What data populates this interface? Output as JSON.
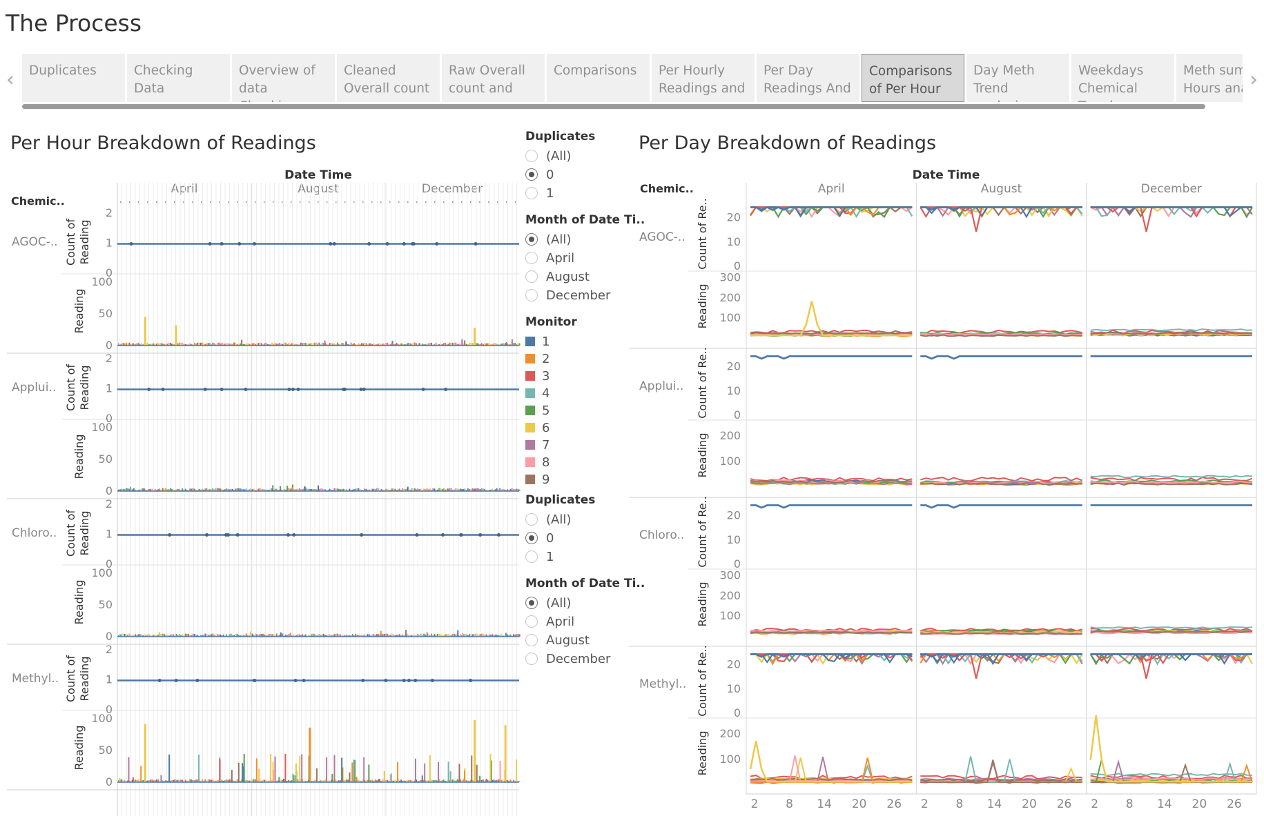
{
  "page_title": "The Process",
  "tabs": [
    {
      "label": "Duplicates",
      "active": false
    },
    {
      "label": "Checking Data",
      "active": false
    },
    {
      "label": "Overview of\ndata Checking",
      "active": false
    },
    {
      "label": "Cleaned\nOverall count",
      "active": false
    },
    {
      "label": "Raw Overall\ncount and",
      "active": false
    },
    {
      "label": "Comparisons",
      "active": false
    },
    {
      "label": "Per Hourly\nReadings and",
      "active": false
    },
    {
      "label": "Per Day\nReadings And",
      "active": false
    },
    {
      "label": "Comparisons\nof Per Hour",
      "active": true
    },
    {
      "label": "Day Meth\nTrend analysis",
      "active": false
    },
    {
      "label": "Weekdays\nChemical Trend",
      "active": false
    },
    {
      "label": "Meth sum\nHours ana",
      "active": false
    }
  ],
  "nav": {
    "prev_icon": "chevron-left-icon",
    "next_icon": "chevron-right-icon"
  },
  "left_title": "Per Hour Breakdown of Readings",
  "right_title": "Per Day Breakdown of Readings",
  "chart_data": [
    {
      "type": "bar",
      "title": "Per Hour Breakdown of Readings",
      "column_header": "Date Time",
      "row_header": "Chemic..",
      "columns": [
        "April",
        "August",
        "December"
      ],
      "chemicals": [
        "AGOC-..",
        "Applui..",
        "Chloro..",
        "Methyl.."
      ],
      "measures": [
        "Count of Reading",
        "Reading"
      ],
      "count_axis": {
        "ticks": [
          "2",
          "1",
          "0"
        ],
        "ylim": [
          0,
          2
        ],
        "value": 1
      },
      "reading_axis": {
        "ticks": [
          "100",
          "50",
          "0"
        ],
        "ylim": [
          0,
          100
        ]
      },
      "peaks": [
        {
          "chemical": "AGOC-..",
          "month": "April",
          "value": 45,
          "series": "6"
        },
        {
          "chemical": "AGOC-..",
          "month": "April",
          "value": 32,
          "series": "6"
        },
        {
          "chemical": "AGOC-..",
          "month": "December",
          "value": 28,
          "series": "6"
        },
        {
          "chemical": "Methyl..",
          "month": "April",
          "value": 92,
          "series": "6"
        },
        {
          "chemical": "Methyl..",
          "month": "August",
          "value": 86,
          "series": "2"
        },
        {
          "chemical": "Methyl..",
          "month": "December",
          "value": 98,
          "series": "6"
        },
        {
          "chemical": "Methyl..",
          "month": "December",
          "value": 90,
          "series": "6"
        }
      ]
    },
    {
      "type": "line",
      "title": "Per Day Breakdown of Readings",
      "column_header": "Date Time",
      "row_header": "Chemic..",
      "columns": [
        "April",
        "August",
        "December"
      ],
      "chemicals": [
        "AGOC-..",
        "Applui..",
        "Chloro..",
        "Methyl.."
      ],
      "measures": [
        "Count of Re..",
        "Reading"
      ],
      "x_ticks": [
        "2",
        "8",
        "14",
        "20",
        "26"
      ],
      "count_axis": {
        "ticks": [
          "20",
          "10",
          "0"
        ],
        "ylim": [
          0,
          25
        ],
        "typical": 24
      },
      "reading_axes": [
        {
          "chemical": "AGOC-..",
          "ticks": [
            "300",
            "200",
            "100"
          ],
          "ylim": [
            0,
            330
          ]
        },
        {
          "chemical": "Applui..",
          "ticks": [
            "200",
            "100"
          ],
          "ylim": [
            0,
            260
          ]
        },
        {
          "chemical": "Chloro..",
          "ticks": [
            "300",
            "200",
            "100"
          ],
          "ylim": [
            0,
            330
          ]
        },
        {
          "chemical": "Methyl..",
          "ticks": [
            "200",
            "100"
          ],
          "ylim": [
            0,
            260
          ]
        }
      ],
      "peaks": [
        {
          "chemical": "AGOC-..",
          "month": "April",
          "day": 12,
          "value": 180,
          "series": "6"
        },
        {
          "chemical": "Methyl..",
          "month": "December",
          "day": 2,
          "value": 270,
          "series": "6"
        },
        {
          "chemical": "Methyl..",
          "month": "April",
          "day": 2,
          "value": 170,
          "series": "6"
        }
      ]
    }
  ],
  "legend": {
    "dup1": {
      "title": "Duplicates",
      "options": [
        "(All)",
        "0",
        "1"
      ],
      "selected": "0"
    },
    "month1": {
      "title": "Month of Date Ti..",
      "options": [
        "(All)",
        "April",
        "August",
        "December"
      ],
      "selected": "(All)"
    },
    "monitor": {
      "title": "Monitor",
      "items": [
        {
          "label": "1",
          "color": "#4e79a7"
        },
        {
          "label": "2",
          "color": "#f28e2b"
        },
        {
          "label": "3",
          "color": "#e15759"
        },
        {
          "label": "4",
          "color": "#76b7b2"
        },
        {
          "label": "5",
          "color": "#59a14f"
        },
        {
          "label": "6",
          "color": "#edc948"
        },
        {
          "label": "7",
          "color": "#b07aa1"
        },
        {
          "label": "8",
          "color": "#ff9da7"
        },
        {
          "label": "9",
          "color": "#9c755f"
        }
      ]
    },
    "dup2": {
      "title": "Duplicates",
      "options": [
        "(All)",
        "0",
        "1"
      ],
      "selected": "0"
    },
    "month2": {
      "title": "Month of Date Ti..",
      "options": [
        "(All)",
        "April",
        "August",
        "December"
      ],
      "selected": "(All)"
    }
  }
}
